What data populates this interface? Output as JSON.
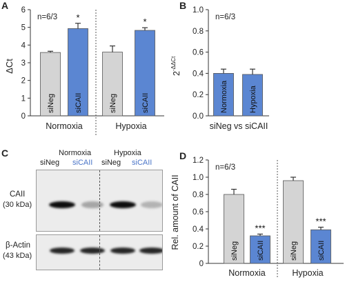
{
  "panels": {
    "A": {
      "label": "A"
    },
    "B": {
      "label": "B"
    },
    "C": {
      "label": "C"
    },
    "D": {
      "label": "D"
    }
  },
  "colors": {
    "neg": "#d4d4d4",
    "cai": "#5b86d2",
    "axis": "#333333",
    "blue_text": "#4a74c8"
  },
  "chart_data": [
    {
      "panel": "A",
      "type": "bar",
      "ylabel": "ΔCt",
      "ylim": [
        0,
        6
      ],
      "yticks": [
        "0",
        "1",
        "2",
        "3",
        "4",
        "5",
        "6"
      ],
      "annotation": "n=6/3",
      "groups": [
        "Normoxia",
        "Hypoxia"
      ],
      "bars": [
        {
          "group": "Normoxia",
          "label": "siNeg",
          "value": 3.58,
          "error": 0.07,
          "sig": ""
        },
        {
          "group": "Normoxia",
          "label": "siCAII",
          "value": 4.93,
          "error": 0.3,
          "sig": "*"
        },
        {
          "group": "Hypoxia",
          "label": "siNeg",
          "value": 3.6,
          "error": 0.35,
          "sig": ""
        },
        {
          "group": "Hypoxia",
          "label": "siCAII",
          "value": 4.83,
          "error": 0.15,
          "sig": "*"
        }
      ]
    },
    {
      "panel": "B",
      "type": "bar",
      "ylabel": "2-ΔΔCt",
      "ylim": [
        0,
        1.0
      ],
      "yticks": [
        "0.0",
        "0.2",
        "0.4",
        "0.6",
        "0.8",
        "1.0"
      ],
      "annotation": "n=6/3",
      "xlabel": "siNeg vs siCAII",
      "bars": [
        {
          "label": "Normoxia",
          "value": 0.4,
          "error": 0.04
        },
        {
          "label": "Hypoxia",
          "value": 0.39,
          "error": 0.05
        }
      ]
    },
    {
      "panel": "D",
      "type": "bar",
      "ylabel": "Rel. amount of CAII",
      "ylim": [
        0,
        1.2
      ],
      "yticks": [
        "0",
        "0.2",
        "0.4",
        "0.6",
        "0.8",
        "1.0",
        "1.2"
      ],
      "annotation": "n=6/3",
      "groups": [
        "Normoxia",
        "Hypoxia"
      ],
      "bars": [
        {
          "group": "Normoxia",
          "label": "siNeg",
          "value": 0.8,
          "error": 0.06,
          "sig": ""
        },
        {
          "group": "Normoxia",
          "label": "siCAII",
          "value": 0.32,
          "error": 0.02,
          "sig": "***"
        },
        {
          "group": "Hypoxia",
          "label": "siNeg",
          "value": 0.96,
          "error": 0.04,
          "sig": ""
        },
        {
          "group": "Hypoxia",
          "label": "siCAII",
          "value": 0.39,
          "error": 0.03,
          "sig": "***"
        }
      ]
    }
  ],
  "blot": {
    "conditions": [
      "Normoxia",
      "Hypoxia"
    ],
    "lanes": [
      "siNeg",
      "siCAII",
      "siNeg",
      "siCAII"
    ],
    "proteins": [
      {
        "name": "CAII",
        "size": "(30 kDa)",
        "intensities": [
          0.95,
          0.35,
          0.95,
          0.3
        ]
      },
      {
        "name": "β-Actin",
        "size": "(43 kDa)",
        "intensities": [
          0.85,
          0.85,
          0.85,
          0.85
        ]
      }
    ]
  }
}
